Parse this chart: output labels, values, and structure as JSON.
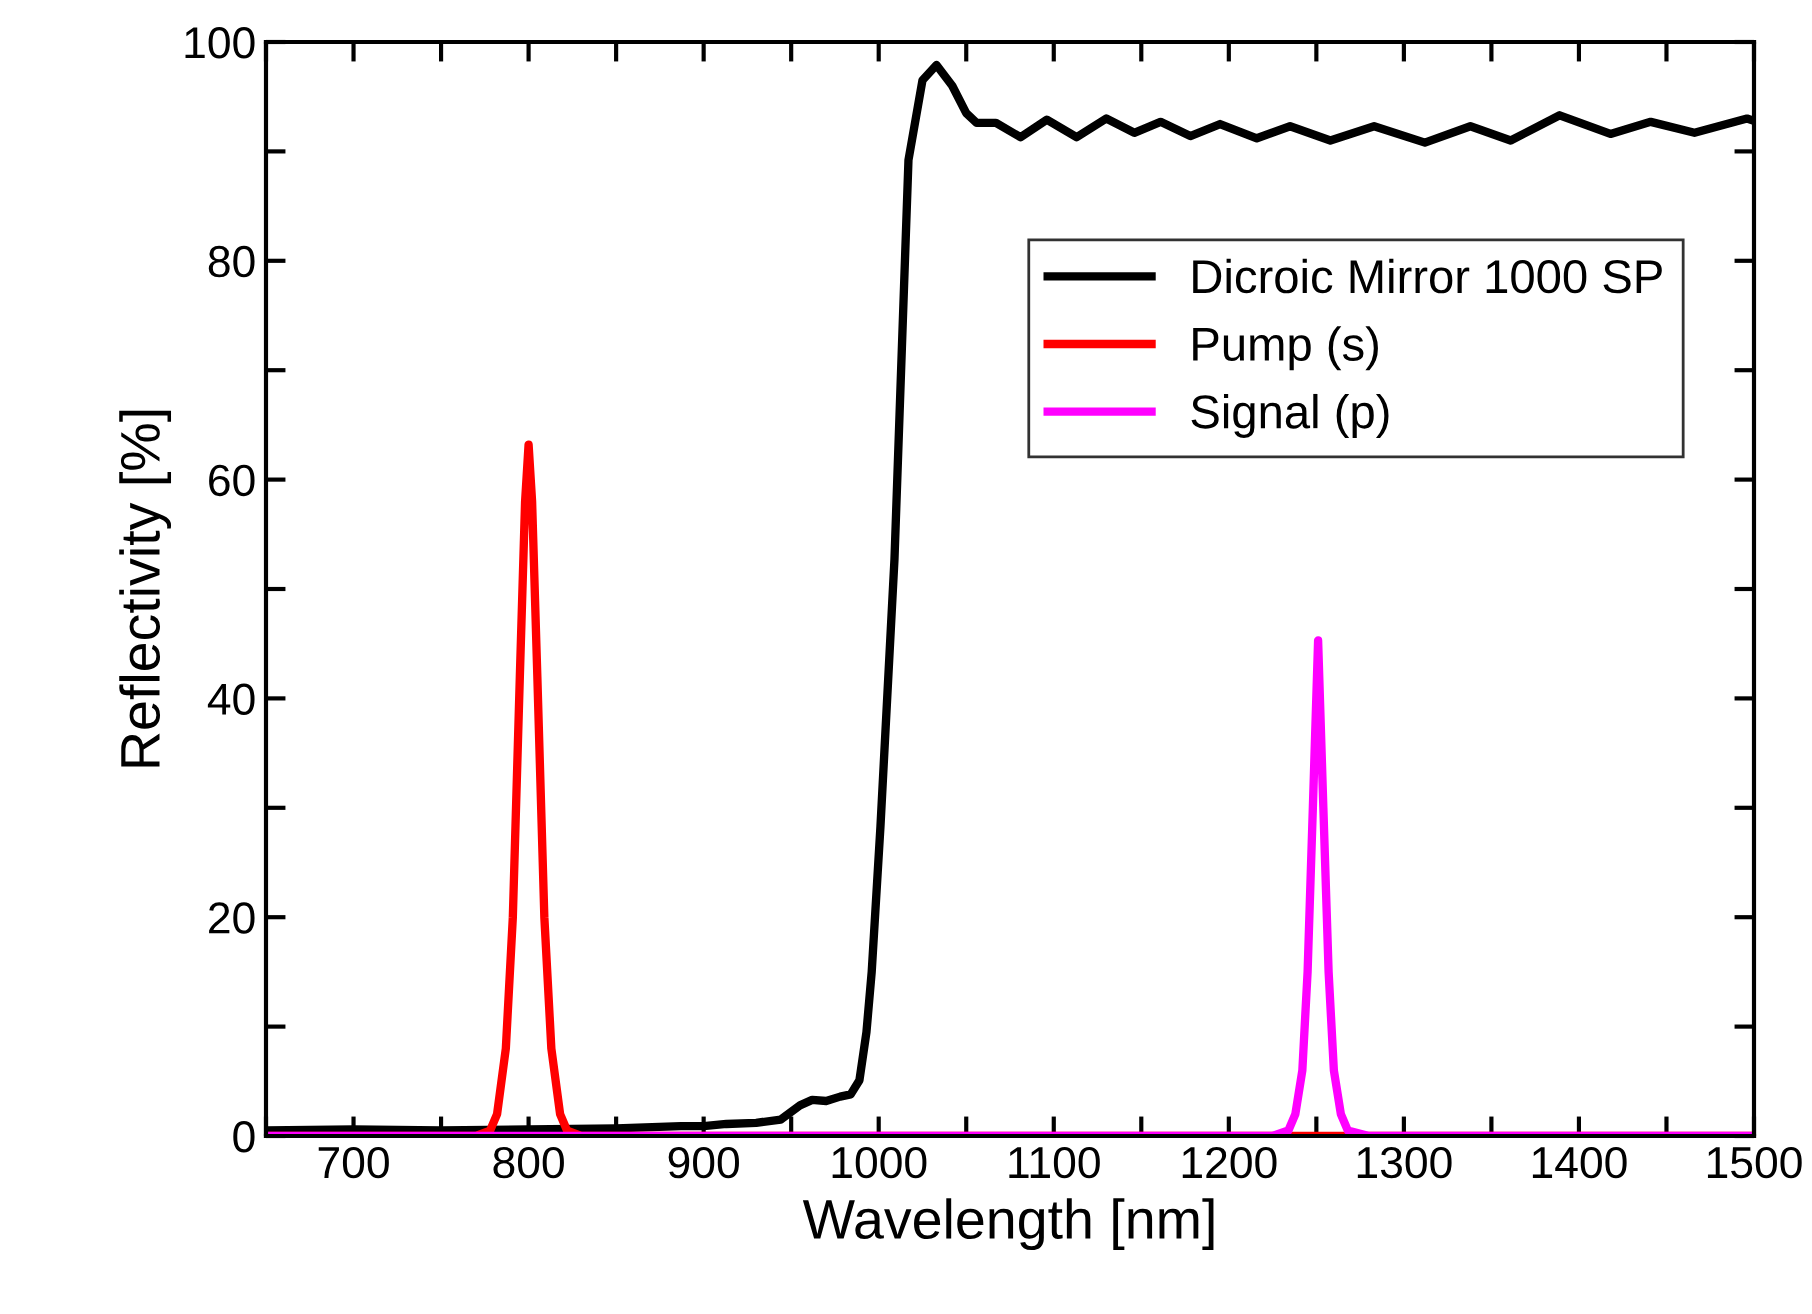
{
  "chart_data": {
    "type": "line",
    "xlabel": "Wavelength [nm]",
    "ylabel": "Reflectivity [%]",
    "xlim": [
      650,
      1500
    ],
    "ylim": [
      0,
      100
    ],
    "xticks": [
      {
        "value": 650,
        "label": null
      },
      700,
      {
        "value": 750,
        "label": null
      },
      800,
      {
        "value": 850,
        "label": null
      },
      900,
      {
        "value": 950,
        "label": null
      },
      1000,
      {
        "value": 1050,
        "label": null
      },
      1100,
      {
        "value": 1150,
        "label": null
      },
      1200,
      {
        "value": 1250,
        "label": null
      },
      1300,
      {
        "value": 1350,
        "label": null
      },
      1400,
      {
        "value": 1450,
        "label": null
      },
      1500
    ],
    "yticks": [
      0,
      {
        "value": 10,
        "label": null
      },
      20,
      {
        "value": 30,
        "label": null
      },
      40,
      {
        "value": 50,
        "label": null
      },
      60,
      {
        "value": 70,
        "label": null
      },
      80,
      {
        "value": 90,
        "label": null
      },
      100
    ],
    "grid": false,
    "legend": "right",
    "line_style": "solid",
    "marker": "none",
    "series": [
      {
        "name": "Dicroic Mirror 1000 SP",
        "color": "#000000",
        "x": [
          650,
          700,
          750,
          800,
          850,
          887,
          900,
          913,
          930,
          944,
          955,
          962,
          970,
          978,
          984,
          989,
          993,
          996,
          1001,
          1009,
          1017,
          1025,
          1033,
          1042,
          1050,
          1056,
          1067,
          1081,
          1096,
          1113,
          1130,
          1146,
          1161,
          1178,
          1195,
          1216,
          1235,
          1258,
          1283,
          1312,
          1338,
          1361,
          1389,
          1418,
          1441,
          1466,
          1496,
          1500
        ],
        "values": [
          0.5,
          0.6,
          0.5,
          0.6,
          0.7,
          0.9,
          0.9,
          1.1,
          1.2,
          1.5,
          2.8,
          3.3,
          3.2,
          3.6,
          3.8,
          5.1,
          9.5,
          15,
          28.3,
          52.7,
          89.2,
          96.5,
          97.9,
          96,
          93.5,
          92.6,
          92.6,
          91.3,
          92.9,
          91.3,
          93,
          91.7,
          92.7,
          91.4,
          92.5,
          91.2,
          92.3,
          91,
          92.3,
          90.8,
          92.3,
          91,
          93.3,
          91.6,
          92.7,
          91.7,
          93,
          92.8
        ]
      },
      {
        "name": "Pump (s)",
        "color": "#ff0000",
        "x": [
          650,
          770,
          778,
          782,
          787,
          791,
          795,
          798,
          800,
          802,
          805,
          809,
          813,
          818,
          822,
          830,
          1500
        ],
        "values": [
          0,
          0,
          0.5,
          2,
          8,
          20,
          42,
          58,
          63.2,
          58,
          42,
          20,
          8,
          2,
          0.5,
          0,
          0
        ]
      },
      {
        "name": "Signal (p)",
        "color": "#ff00ff",
        "x": [
          650,
          1225,
          1234,
          1238,
          1242,
          1245,
          1248,
          1251,
          1254,
          1257,
          1260,
          1264,
          1268,
          1280,
          1500
        ],
        "values": [
          0,
          0,
          0.5,
          2,
          6,
          15,
          30,
          45.3,
          30,
          15,
          6,
          2,
          0.5,
          0,
          0
        ]
      }
    ]
  }
}
